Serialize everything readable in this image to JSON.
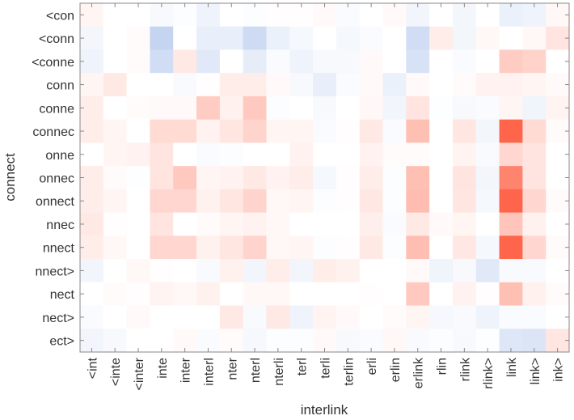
{
  "chart_data": {
    "type": "heatmap",
    "xlabel": "interlink",
    "ylabel": "connect",
    "x_categories": [
      "<int",
      "<inte",
      "<inter",
      "inte",
      "inter",
      "interl",
      "nter",
      "nterl",
      "nterli",
      "terl",
      "terli",
      "terlin",
      "erli",
      "erlin",
      "erlink",
      "rlin",
      "rlink",
      "rlink>",
      "link",
      "link>",
      "ink>"
    ],
    "y_categories": [
      "<con",
      "<conn",
      "<conne",
      "conn",
      "conne",
      "connec",
      "onne",
      "onnec",
      "onnect",
      "nnec",
      "nnect",
      "nnect>",
      "nect",
      "nect>",
      "ect>"
    ],
    "value_range": [
      -1,
      1
    ],
    "colors": {
      "negative": "#5a87d8",
      "zero": "#ffffff",
      "positive": "#ff4a2a"
    },
    "values": [
      [
        0.05,
        0,
        0,
        -0.05,
        -0.02,
        -0.1,
        0,
        -0.02,
        0.01,
        0.01,
        0.03,
        -0.03,
        0,
        0.03,
        -0.08,
        0,
        -0.07,
        0,
        -0.12,
        -0.1,
        0.04
      ],
      [
        -0.07,
        0,
        0.02,
        -0.35,
        0,
        -0.14,
        -0.14,
        -0.3,
        -0.12,
        -0.06,
        0,
        -0.06,
        -0.03,
        0,
        -0.28,
        0.1,
        -0.07,
        0.04,
        0,
        0.04,
        0.15
      ],
      [
        -0.1,
        0,
        0.02,
        -0.28,
        0.12,
        -0.18,
        0,
        -0.15,
        -0.03,
        -0.1,
        -0.05,
        -0.05,
        0.03,
        0,
        -0.24,
        0,
        -0.03,
        0,
        0.28,
        0.25,
        0
      ],
      [
        0.05,
        0.12,
        0,
        0,
        -0.04,
        0.01,
        0.1,
        0.1,
        0.03,
        -0.05,
        -0.14,
        -0.03,
        0.03,
        -0.12,
        0.03,
        0,
        0.02,
        0.07,
        0.07,
        0.05,
        0.03
      ],
      [
        0.1,
        0,
        0.02,
        0.03,
        0.03,
        0.28,
        0.08,
        0.3,
        -0.02,
        0,
        -0.05,
        0,
        0.04,
        -0.08,
        0.15,
        -0.01,
        -0.05,
        -0.03,
        0.05,
        -0.09,
        0.06
      ],
      [
        0.1,
        0.05,
        0,
        0.2,
        0.2,
        0.07,
        0.14,
        0.24,
        0.05,
        0.05,
        -0.03,
        0.01,
        0.12,
        -0.03,
        0.35,
        0,
        0.14,
        -0.07,
        0.85,
        0.2,
        0.02
      ],
      [
        0,
        0.05,
        0.07,
        0.15,
        0,
        -0.03,
        -0.02,
        0,
        0,
        0.07,
        0,
        0,
        0.07,
        0.02,
        0.02,
        0,
        0.06,
        -0.04,
        0.22,
        0.15,
        0
      ],
      [
        0.1,
        0.02,
        -0.01,
        0.15,
        0.3,
        0.05,
        0.07,
        0.12,
        0.07,
        0.1,
        -0.06,
        0.01,
        0.1,
        -0.02,
        0.35,
        0,
        0.15,
        -0.07,
        0.68,
        0.15,
        0
      ],
      [
        0.1,
        0.05,
        0,
        0.22,
        0.22,
        0.08,
        0.14,
        0.24,
        0.04,
        0.05,
        -0.02,
        0.01,
        0.13,
        -0.02,
        0.37,
        0,
        0.14,
        -0.06,
        0.85,
        0.22,
        0.02
      ],
      [
        0.12,
        0.01,
        0,
        0.15,
        0,
        0.02,
        0.05,
        0.07,
        0.04,
        0,
        0,
        0,
        0.09,
        -0.03,
        0.12,
        0.03,
        0.05,
        0,
        0.32,
        0.08,
        0
      ],
      [
        0.1,
        0.04,
        0,
        0.22,
        0.22,
        0.08,
        0.14,
        0.24,
        0.04,
        0.05,
        -0.02,
        0.01,
        0.12,
        -0.02,
        0.36,
        0,
        0.13,
        -0.06,
        0.85,
        0.22,
        0.02
      ],
      [
        -0.08,
        0,
        0.04,
        0.01,
        0,
        -0.04,
        0.08,
        -0.08,
        0.1,
        -0.08,
        0.1,
        0.08,
        0,
        0,
        0.03,
        -0.09,
        -0.05,
        -0.18,
        -0.04,
        -0.04,
        0
      ],
      [
        0,
        0.02,
        0.01,
        0.06,
        0.04,
        0.08,
        0,
        0.04,
        0.04,
        0,
        0,
        0,
        0.01,
        0,
        0.3,
        0,
        0.07,
        0.01,
        0.35,
        0.08,
        0.02
      ],
      [
        -0.03,
        0,
        0.03,
        0,
        0,
        0,
        0.12,
        -0.04,
        0.12,
        -0.1,
        0.06,
        0.03,
        0,
        0.02,
        0.05,
        -0.06,
        -0.04,
        -0.1,
        -0.03,
        -0.03,
        0
      ],
      [
        -0.08,
        -0.05,
        0,
        0,
        0.03,
        -0.03,
        0.02,
        -0.06,
        -0.02,
        -0.02,
        0.03,
        -0.05,
        -0.03,
        0.04,
        -0.04,
        -0.02,
        -0.05,
        -0.01,
        -0.2,
        -0.22,
        0.14
      ]
    ],
    "grid": false,
    "colorbar": false
  }
}
